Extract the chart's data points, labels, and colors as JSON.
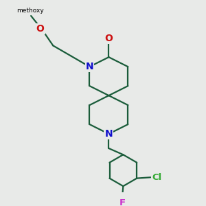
{
  "bg_color": "#e8eae8",
  "bond_color": "#1a5c3a",
  "bond_width": 1.6,
  "N_color": "#1010cc",
  "O_color": "#cc1010",
  "Cl_color": "#33aa33",
  "F_color": "#cc33cc",
  "font_size": 8.5,
  "fig_w": 3.0,
  "fig_h": 3.0,
  "dpi": 100,
  "methoxy_label": "methoxy",
  "methoxy_label_fs": 6.5,
  "O_methoxy_label": "O",
  "N_label": "N",
  "O_carbonyl_label": "O",
  "Cl_label": "Cl",
  "F_label": "F"
}
